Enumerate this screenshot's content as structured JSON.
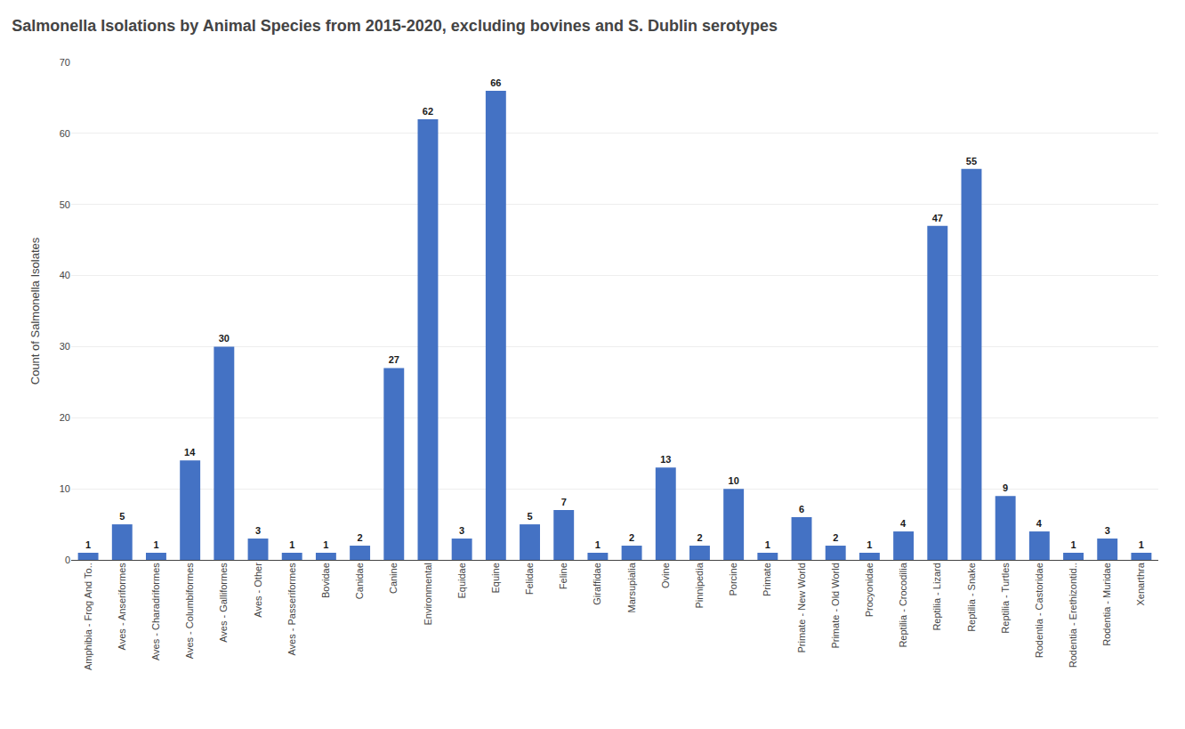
{
  "chart_data": {
    "type": "bar",
    "title": "Salmonella Isolations by Animal Species from 2015-2020, excluding bovines and S. Dublin serotypes",
    "ylabel": "Count of Salmonella Isolates",
    "categories": [
      "Amphibia - Frog And To..",
      "Aves - Anseriformes",
      "Aves - Charadriformes",
      "Aves - Columbiformes",
      "Aves - Galliformes",
      "Aves - Other",
      "Aves - Passeriformes",
      "Bovidae",
      "Canidae",
      "Canine",
      "Environmental",
      "Equidae",
      "Equine",
      "Felidae",
      "Feline",
      "Giraffidae",
      "Marsupialia",
      "Ovine",
      "Pinnipedia",
      "Porcine",
      "Primate",
      "Primate - New World",
      "Primate - Old World",
      "Procyonidae",
      "Reptilia - Crocodilia",
      "Reptilia - Lizard",
      "Reptilia - Snake",
      "Reptilia - Turtles",
      "Rodentia - Castoridae",
      "Rodentia - Erethizontid..",
      "Rodentia - Muridae",
      "Xenarthra"
    ],
    "values": [
      1,
      5,
      1,
      14,
      30,
      3,
      1,
      1,
      2,
      27,
      62,
      3,
      66,
      5,
      7,
      1,
      2,
      13,
      2,
      10,
      1,
      6,
      2,
      1,
      4,
      47,
      55,
      9,
      4,
      1,
      3,
      1
    ],
    "color": "#4472C4",
    "ylim": [
      0,
      70
    ],
    "yticks": [
      0,
      10,
      20,
      30,
      40,
      50,
      60,
      70
    ],
    "grid": true,
    "data_labels": true
  }
}
